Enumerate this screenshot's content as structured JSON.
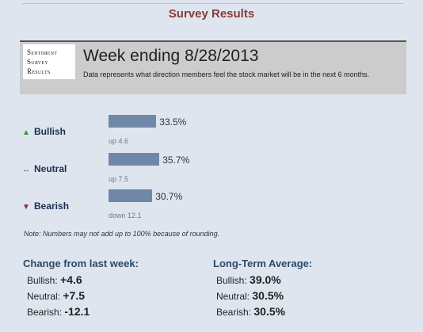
{
  "page": {
    "title": "Survey Results"
  },
  "banner": {
    "logo_lines": [
      "Sentiment",
      "Survey",
      "Results"
    ],
    "week": "Week ending 8/28/2013",
    "description": "Data represents what direction members feel the stock market will be in the next 6 months."
  },
  "sentiment": [
    {
      "label": "Bullish",
      "icon": "triangle-up-icon",
      "percent": "33.5%",
      "value": 33.5,
      "change": "up 4.6"
    },
    {
      "label": "Neutral",
      "icon": "double-arrow-icon",
      "percent": "35.7%",
      "value": 35.7,
      "change": "up 7.5"
    },
    {
      "label": "Bearish",
      "icon": "triangle-down-icon",
      "percent": "30.7%",
      "value": 30.7,
      "change": "down 12.1"
    }
  ],
  "note": "Note: Numbers may not add up to 100% because of rounding.",
  "change_from_last_week": {
    "title": "Change from last week:",
    "items": [
      {
        "label": "Bullish:",
        "value": "+4.6"
      },
      {
        "label": "Neutral:",
        "value": "+7.5"
      },
      {
        "label": "Bearish:",
        "value": "-12.1"
      }
    ]
  },
  "long_term_average": {
    "title": "Long-Term Average:",
    "items": [
      {
        "label": "Bullish:",
        "value": "39.0%"
      },
      {
        "label": "Neutral:",
        "value": "30.5%"
      },
      {
        "label": "Bearish:",
        "value": "30.5%"
      }
    ]
  },
  "colors": {
    "bar": "#7088a8",
    "title": "#8b3a3a",
    "heading": "#2b4a68",
    "background": "#dfe5ee"
  }
}
